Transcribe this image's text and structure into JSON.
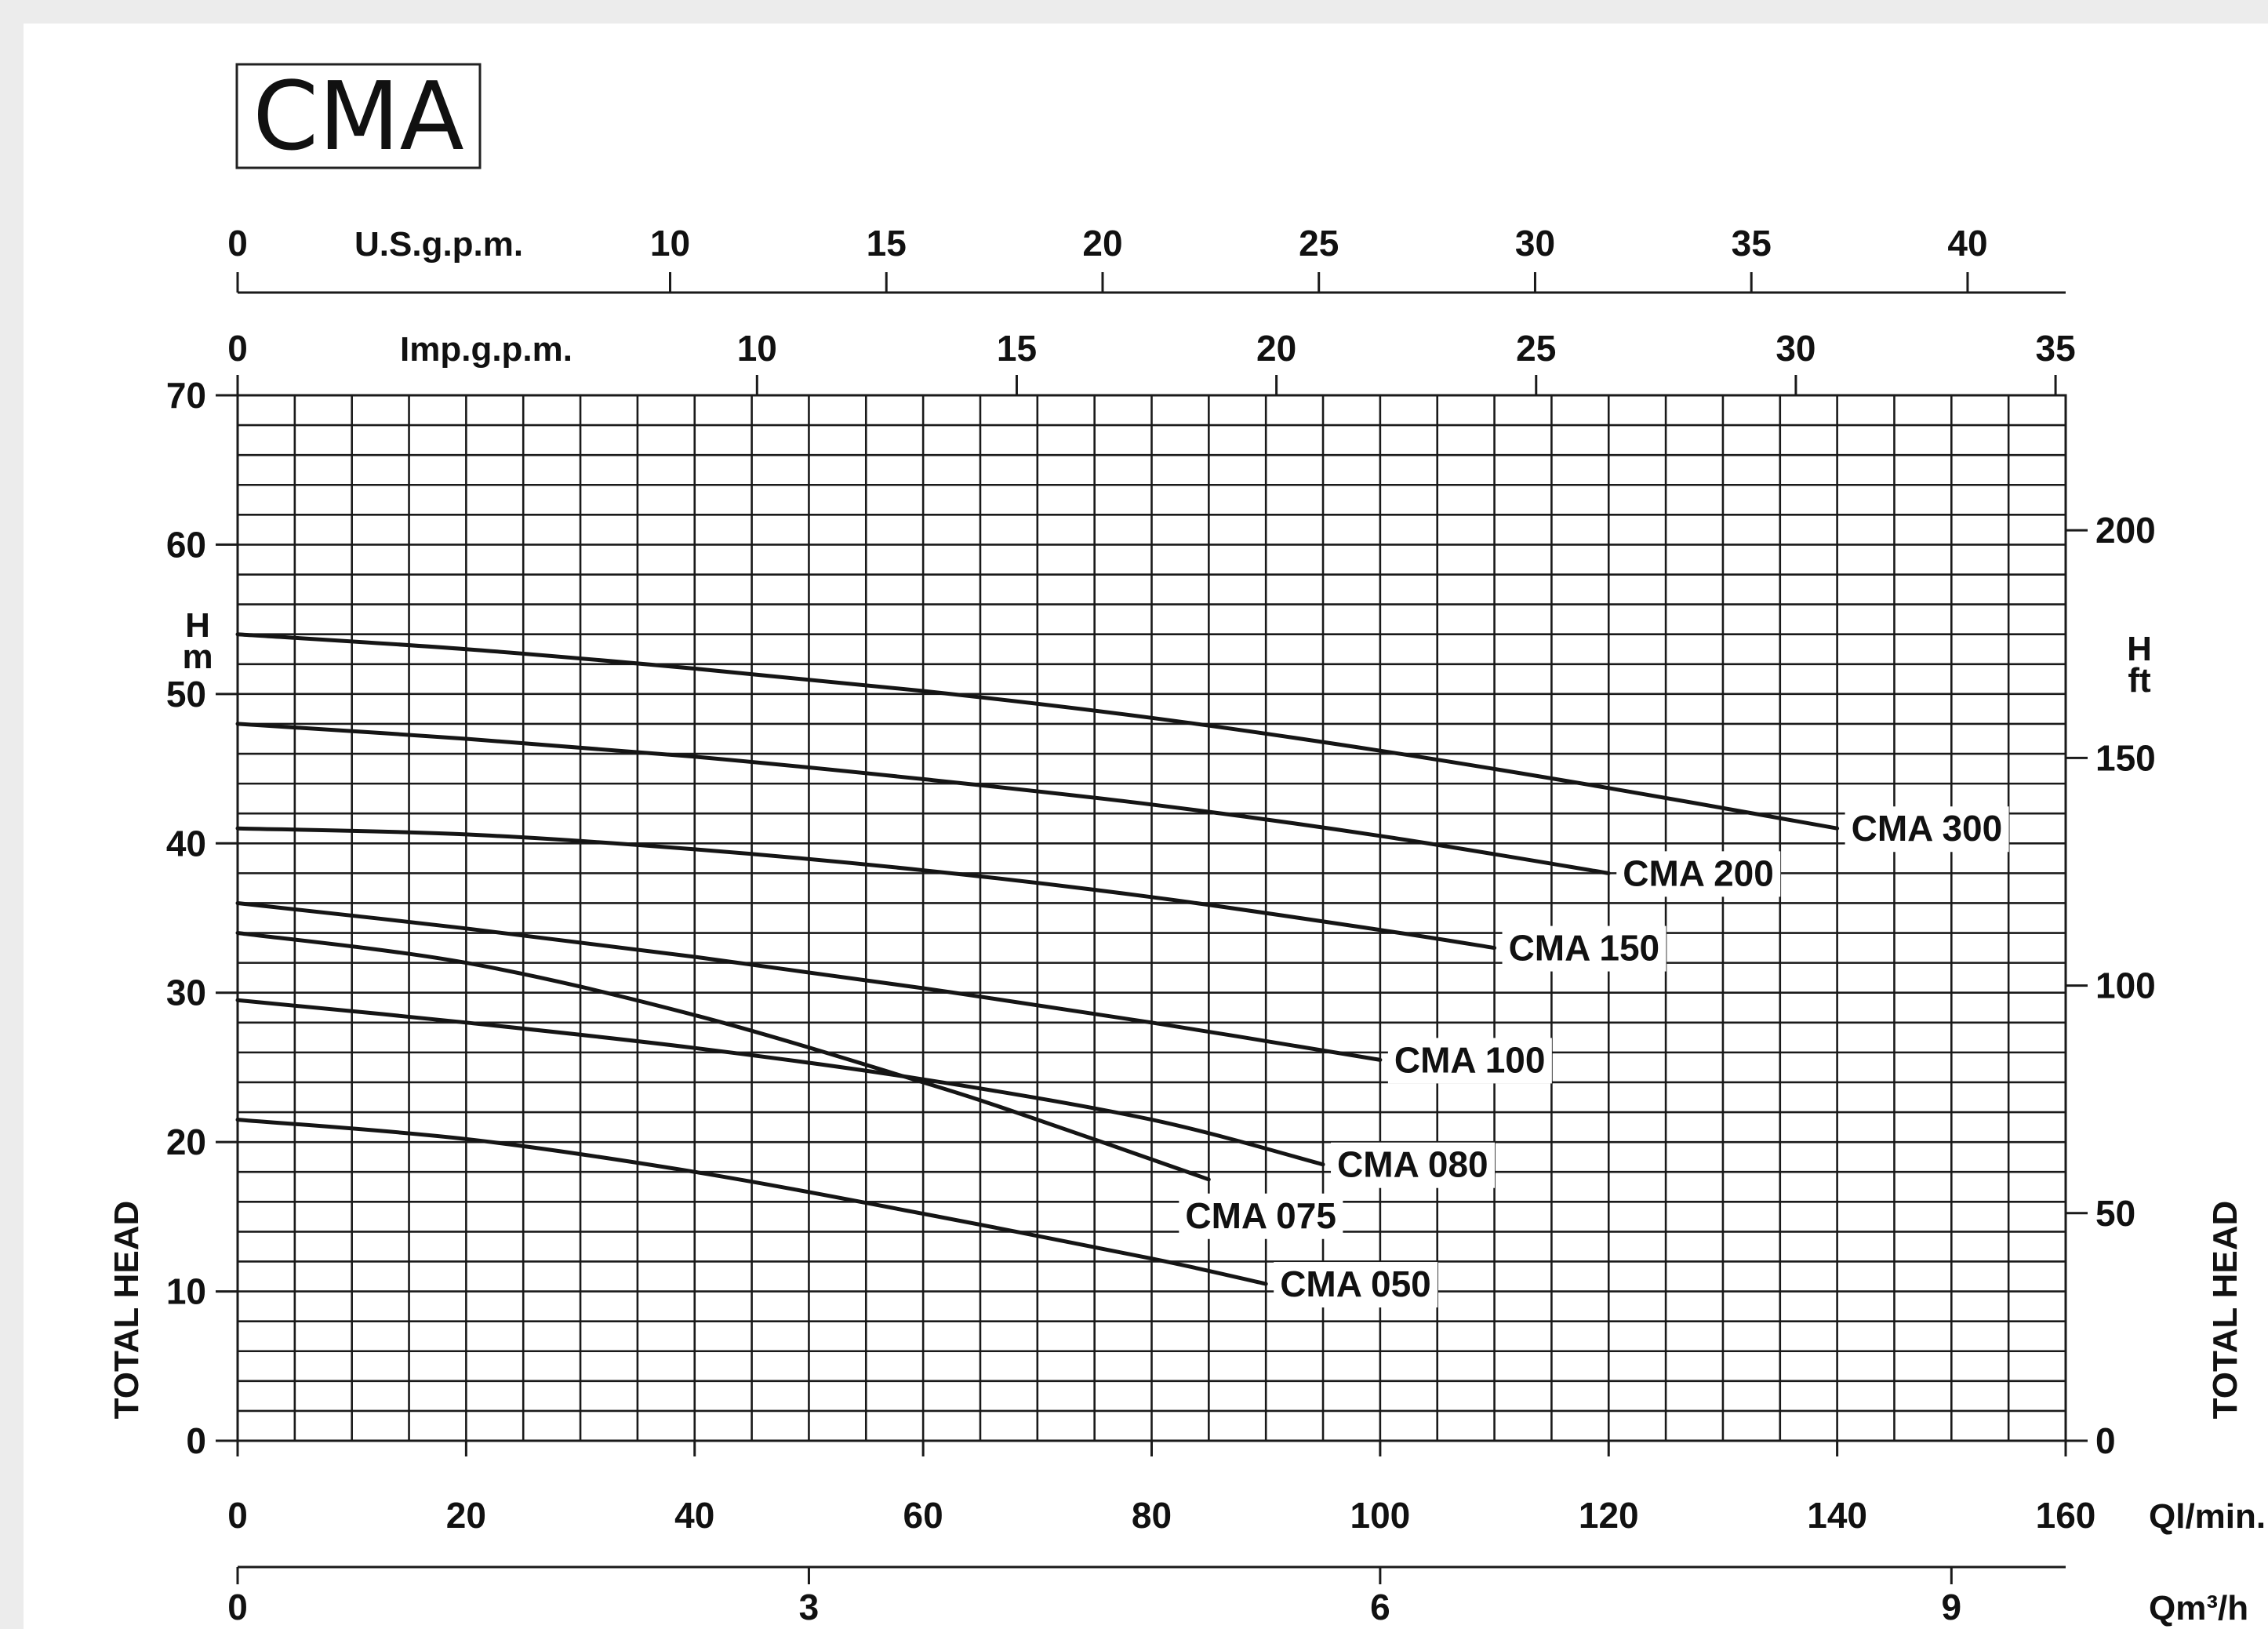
{
  "chart_data": {
    "type": "line",
    "title": "CMA",
    "x": [
      0,
      20,
      40,
      60,
      80,
      100,
      120,
      140,
      160
    ],
    "xlabel": "Ql/min.",
    "xlim": [
      0,
      160
    ],
    "ylabel": "TOTAL HEAD",
    "ylabel_unit_left": "H m",
    "ylabel_right": "TOTAL HEAD",
    "ylabel_unit_right": "H ft",
    "ylim": [
      0,
      70
    ],
    "grid": true,
    "axes": {
      "left_ticks": [
        "0",
        "10",
        "20",
        "30",
        "40",
        "50",
        "60",
        "70"
      ],
      "left_unit": [
        "H",
        "m"
      ],
      "right_ticks": [
        {
          "label": "0",
          "ft": 0
        },
        {
          "label": "50",
          "ft": 50
        },
        {
          "label": "100",
          "ft": 100
        },
        {
          "label": "150",
          "ft": 150
        },
        {
          "label": "200",
          "ft": 200
        }
      ],
      "right_unit": [
        "H",
        "ft"
      ],
      "bottom_ticks": [
        "0",
        "20",
        "40",
        "60",
        "80",
        "100",
        "120",
        "140",
        "160"
      ],
      "bottom_unit": "Ql/min.",
      "qm3_ticks": [
        {
          "label": "0",
          "value": 0
        },
        {
          "label": "3",
          "value": 3
        },
        {
          "label": "6",
          "value": 6
        },
        {
          "label": "9",
          "value": 9
        }
      ],
      "qm3_unit": "Qm³/h",
      "usgpm_ticks": [
        {
          "label": "0",
          "value": 0
        },
        {
          "label": "10",
          "value": 10
        },
        {
          "label": "15",
          "value": 15
        },
        {
          "label": "20",
          "value": 20
        },
        {
          "label": "25",
          "value": 25
        },
        {
          "label": "30",
          "value": 30
        },
        {
          "label": "35",
          "value": 35
        },
        {
          "label": "40",
          "value": 40
        }
      ],
      "usgpm_unit": "U.S.g.p.m.",
      "impgpm_ticks": [
        {
          "label": "0",
          "value": 0
        },
        {
          "label": "10",
          "value": 10
        },
        {
          "label": "15",
          "value": 15
        },
        {
          "label": "20",
          "value": 20
        },
        {
          "label": "25",
          "value": 25
        },
        {
          "label": "30",
          "value": 30
        },
        {
          "label": "35",
          "value": 35
        }
      ],
      "impgpm_unit": "Imp.g.p.m."
    },
    "series": [
      {
        "name": "CMA 300",
        "x": [
          0,
          20,
          40,
          60,
          80,
          100,
          120,
          140
        ],
        "values": [
          54,
          53,
          51.7,
          50.2,
          48.4,
          46.2,
          43.7,
          41
        ]
      },
      {
        "name": "CMA 200",
        "x": [
          0,
          20,
          40,
          60,
          80,
          100,
          120
        ],
        "values": [
          48,
          47,
          45.8,
          44.3,
          42.6,
          40.5,
          38
        ]
      },
      {
        "name": "CMA 150",
        "x": [
          0,
          20,
          40,
          60,
          80,
          100,
          110
        ],
        "values": [
          41,
          40.6,
          39.6,
          38.2,
          36.4,
          34.2,
          33
        ]
      },
      {
        "name": "CMA 100",
        "x": [
          0,
          20,
          40,
          60,
          80,
          100
        ],
        "values": [
          36,
          34.3,
          32.4,
          30.3,
          28,
          25.5
        ]
      },
      {
        "name": "CMA 080",
        "x": [
          0,
          20,
          40,
          60,
          80,
          95
        ],
        "values": [
          29.5,
          28,
          26.3,
          24.2,
          21.5,
          18.5
        ]
      },
      {
        "name": "CMA 075",
        "x": [
          0,
          20,
          40,
          60,
          70,
          85
        ],
        "values": [
          34,
          32,
          28.5,
          24,
          21.5,
          17.5
        ]
      },
      {
        "name": "CMA 050",
        "x": [
          0,
          20,
          40,
          60,
          80,
          90
        ],
        "values": [
          21.5,
          20.2,
          18,
          15.2,
          12.2,
          10.5
        ]
      }
    ]
  }
}
